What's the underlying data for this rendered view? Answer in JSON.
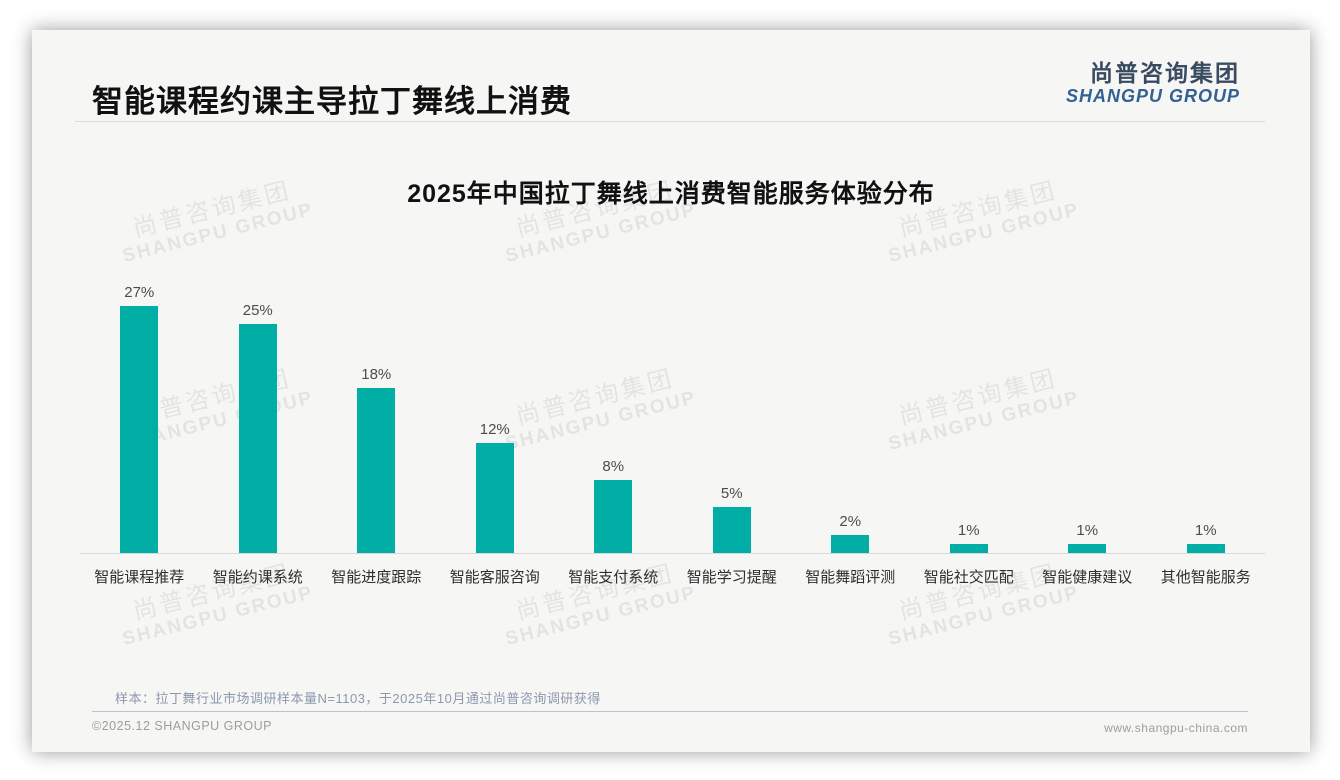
{
  "page": {
    "title": "智能课程约课主导拉丁舞线上消费",
    "logo": {
      "cn": "尚普咨询集团",
      "en": "SHANGPU GROUP"
    },
    "watermark": {
      "cn": "尚普咨询集团",
      "en": "SHANGPU GROUP"
    },
    "note": "样本：拉丁舞行业市场调研样本量N=1103，于2025年10月通过尚普咨询调研获得",
    "footer_left": "©2025.12 SHANGPU GROUP",
    "footer_right": "www.shangpu-china.com"
  },
  "chart_data": {
    "type": "bar",
    "title": "2025年中国拉丁舞线上消费智能服务体验分布",
    "categories": [
      "智能课程推荐",
      "智能约课系统",
      "智能进度跟踪",
      "智能客服咨询",
      "智能支付系统",
      "智能学习提醒",
      "智能舞蹈评测",
      "智能社交匹配",
      "智能健康建议",
      "其他智能服务"
    ],
    "values": [
      27,
      25,
      18,
      12,
      8,
      5,
      2,
      1,
      1,
      1
    ],
    "unit": "%",
    "value_label_position": "above",
    "bar_color": "#00AEA6",
    "xlabel": "",
    "ylabel": "",
    "ylim": [
      0,
      30
    ],
    "grid": false,
    "legend": "none"
  }
}
